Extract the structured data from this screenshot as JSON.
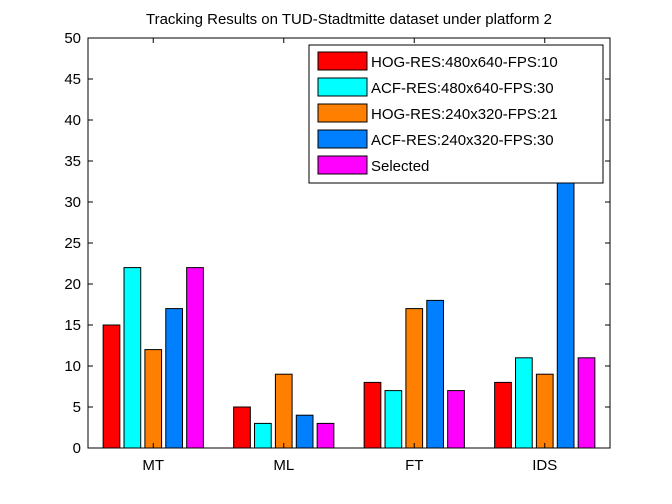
{
  "chart_data": {
    "type": "bar",
    "title": "Tracking Results on TUD-Stadtmitte dataset under platform 2",
    "xlabel": "",
    "ylabel": "",
    "categories": [
      "MT",
      "ML",
      "FT",
      "IDS"
    ],
    "ylim": [
      0,
      50
    ],
    "yticks": [
      "0",
      "5",
      "10",
      "15",
      "20",
      "25",
      "30",
      "35",
      "40",
      "45",
      "50"
    ],
    "grid": false,
    "legend_position": "top-right",
    "series": [
      {
        "name": "HOG-RES:480x640-FPS:10",
        "color": "#ff0000",
        "values": [
          15,
          5,
          8,
          8
        ]
      },
      {
        "name": "ACF-RES:480x640-FPS:30",
        "color": "#00ffff",
        "values": [
          22,
          3,
          7,
          11
        ]
      },
      {
        "name": "HOG-RES:240x320-FPS:21",
        "color": "#ff8000",
        "values": [
          12,
          9,
          17,
          9
        ]
      },
      {
        "name": "ACF-RES:240x320-FPS:30",
        "color": "#0080ff",
        "values": [
          17,
          4,
          18,
          33
        ]
      },
      {
        "name": "Selected",
        "color": "#ff00ff",
        "values": [
          22,
          3,
          7,
          11
        ]
      }
    ]
  }
}
